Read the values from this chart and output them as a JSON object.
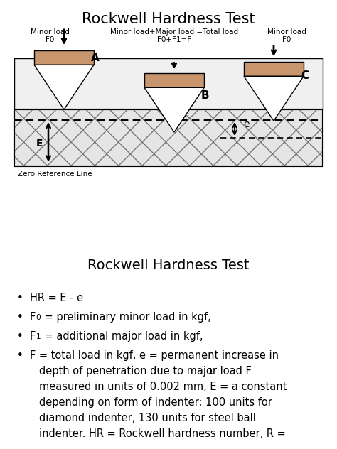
{
  "title_top": "Rockwell Hardness Test",
  "title_bottom": "Rockwell Hardness Test",
  "indenter_color": "#c8956c",
  "material_face": "#e0e0e0",
  "material_hatch_color": "#888888",
  "label_minor_load_left": "Minor load\nF0",
  "label_minor_major": "Minor load+Major load =Total load\nF0+F1=F",
  "label_minor_load_right": "Minor load\nF0",
  "label_A": "A",
  "label_B": "B",
  "label_C": "C",
  "label_E": "E",
  "label_e": "e",
  "label_zero_ref": "Zero Reference Line",
  "diagram_bg": "#f2f2f2",
  "bullet1": "HR = E - e",
  "bullet2_pre": "F",
  "bullet2_sub": "0",
  "bullet2_post": " = preliminary minor load in kgf,",
  "bullet3_pre": "F",
  "bullet3_sub": "1",
  "bullet3_post": " = additional major load in kgf,",
  "bullet4_pre": "F",
  "bullet4_sub": "1",
  "bullet4_line1": "F = total load in kgf, e = permanent increase in",
  "bullet4_line2": "depth of penetration due to major load F",
  "bullet4_line3": "measured in units of 0.002 mm, E = a constant",
  "bullet4_line4": "depending on form of indenter: 100 units for",
  "bullet4_line5": "diamond indenter, 130 units for steel ball",
  "bullet4_line6": "indenter. HR = Rockwell hardness number, R ="
}
